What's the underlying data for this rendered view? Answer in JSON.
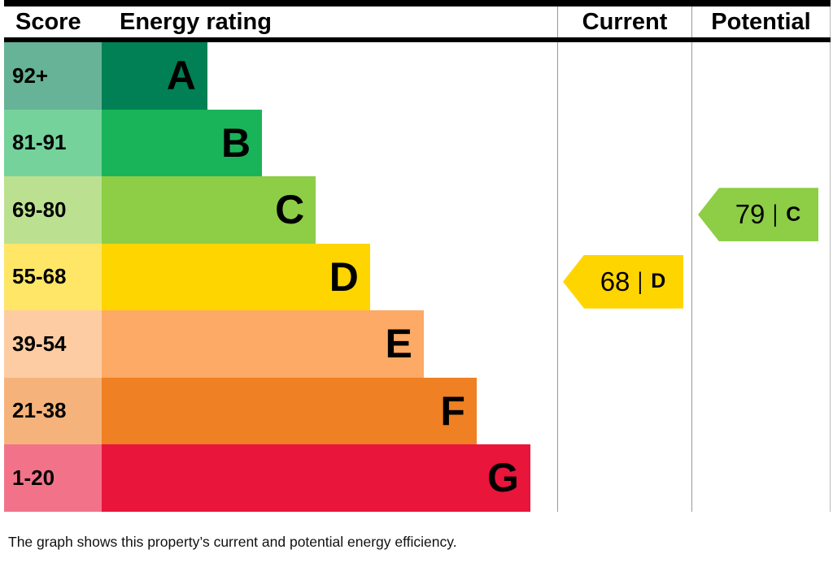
{
  "header": {
    "score": "Score",
    "energy_rating": "Energy rating",
    "current": "Current",
    "potential": "Potential"
  },
  "caption": "The graph shows this property’s current and potential energy efficiency.",
  "chart_data": {
    "type": "bar",
    "title": "Energy efficiency rating (EPC)",
    "xlabel": "",
    "ylabel": "Score",
    "legend_position": "none",
    "grid": false,
    "bands": [
      {
        "score": "92+",
        "letter": "A",
        "bar_color": "#008054",
        "score_color": "#66b398",
        "bar_width_pct": 23.2
      },
      {
        "score": "81-91",
        "letter": "B",
        "bar_color": "#19b459",
        "score_color": "#75d29b",
        "bar_width_pct": 35.2
      },
      {
        "score": "69-80",
        "letter": "C",
        "bar_color": "#8dce46",
        "score_color": "#bbe190",
        "bar_width_pct": 47.0
      },
      {
        "score": "55-68",
        "letter": "D",
        "bar_color": "#ffd500",
        "score_color": "#ffe666",
        "bar_width_pct": 58.9
      },
      {
        "score": "39-54",
        "letter": "E",
        "bar_color": "#fcaa65",
        "score_color": "#fdcca3",
        "bar_width_pct": 70.7
      },
      {
        "score": "21-38",
        "letter": "F",
        "bar_color": "#ef8023",
        "score_color": "#f5b37b",
        "bar_width_pct": 82.3
      },
      {
        "score": "1-20",
        "letter": "G",
        "bar_color": "#e9153b",
        "score_color": "#f27389",
        "bar_width_pct": 94.1
      }
    ],
    "current": {
      "value": "68",
      "divider": "|",
      "letter": "D",
      "band_index": 3,
      "color": "#ffd500"
    },
    "potential": {
      "value": "79",
      "divider": "|",
      "letter": "C",
      "band_index": 2,
      "color": "#8dce46"
    }
  }
}
